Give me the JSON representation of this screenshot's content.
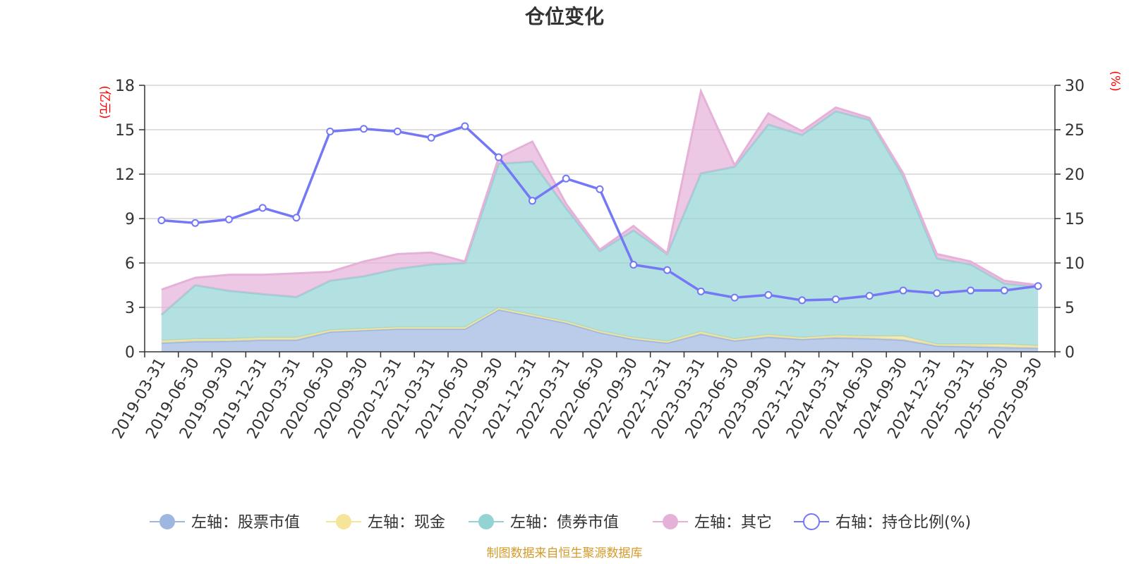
{
  "chart_data": {
    "type": "area",
    "title": "仓位变化",
    "left_axis_unit": "(亿元)",
    "right_axis_unit": "(%)",
    "ylim_left": [
      0,
      18
    ],
    "ylim_right": [
      0,
      30
    ],
    "left_ticks": [
      "0",
      "3",
      "6",
      "9",
      "12",
      "15",
      "18"
    ],
    "right_ticks": [
      "0",
      "5",
      "10",
      "15",
      "20",
      "25",
      "30"
    ],
    "categories": [
      "2019-03-31",
      "2019-06-30",
      "2019-09-30",
      "2019-12-31",
      "2020-03-31",
      "2020-06-30",
      "2020-09-30",
      "2020-12-31",
      "2021-03-31",
      "2021-06-30",
      "2021-09-30",
      "2021-12-31",
      "2022-03-31",
      "2022-06-30",
      "2022-09-30",
      "2022-12-31",
      "2023-03-31",
      "2023-06-30",
      "2023-09-30",
      "2023-12-31",
      "2024-03-31",
      "2024-06-30",
      "2024-09-30",
      "2024-12-31",
      "2025-03-31",
      "2025-06-30",
      "2025-09-30"
    ],
    "series": [
      {
        "name": "左轴：股票市值",
        "axis": "left",
        "color": "#9db7e0",
        "values": [
          0.6,
          0.7,
          0.72,
          0.8,
          0.8,
          1.35,
          1.45,
          1.55,
          1.55,
          1.55,
          2.85,
          2.4,
          1.95,
          1.3,
          0.85,
          0.6,
          1.2,
          0.75,
          1.0,
          0.85,
          0.95,
          0.9,
          0.8,
          0.4,
          0.35,
          0.3,
          0.25
        ]
      },
      {
        "name": "左轴：现金",
        "axis": "left",
        "color": "#f5e49a",
        "values": [
          0.15,
          0.15,
          0.15,
          0.15,
          0.15,
          0.1,
          0.1,
          0.1,
          0.1,
          0.1,
          0.1,
          0.1,
          0.1,
          0.1,
          0.1,
          0.1,
          0.15,
          0.1,
          0.15,
          0.1,
          0.15,
          0.15,
          0.25,
          0.1,
          0.15,
          0.2,
          0.15
        ]
      },
      {
        "name": "左轴：债券市值",
        "axis": "left",
        "color": "#93d3d3",
        "values": [
          1.75,
          3.65,
          3.25,
          2.95,
          2.75,
          3.35,
          3.55,
          3.95,
          4.25,
          4.35,
          9.75,
          10.35,
          7.65,
          5.4,
          7.25,
          5.9,
          10.7,
          11.65,
          14.2,
          13.7,
          15.15,
          14.6,
          10.8,
          5.8,
          5.4,
          4.1,
          4.0
        ]
      },
      {
        "name": "左轴：其它",
        "axis": "left",
        "color": "#e6b1d9",
        "values": [
          1.7,
          0.5,
          1.08,
          1.3,
          1.6,
          0.6,
          1.0,
          1.0,
          0.8,
          0.1,
          0.4,
          1.35,
          0.3,
          0.1,
          0.3,
          0.05,
          5.55,
          0.1,
          0.75,
          0.25,
          0.25,
          0.15,
          0.2,
          0.3,
          0.2,
          0.2,
          0.1
        ]
      },
      {
        "name": "右轴：持仓比例(%)",
        "axis": "right",
        "color": "#7478f5",
        "values": [
          14.8,
          14.5,
          14.9,
          16.2,
          15.1,
          24.8,
          25.1,
          24.8,
          24.1,
          25.4,
          21.9,
          17.0,
          19.5,
          18.3,
          9.8,
          9.2,
          6.8,
          6.1,
          6.4,
          5.8,
          5.9,
          6.3,
          6.9,
          6.6,
          6.9,
          6.9,
          7.4
        ]
      }
    ],
    "legend_position": "bottom-center",
    "grid": true
  },
  "footer": {
    "source": "制图数据来自恒生聚源数据库"
  }
}
